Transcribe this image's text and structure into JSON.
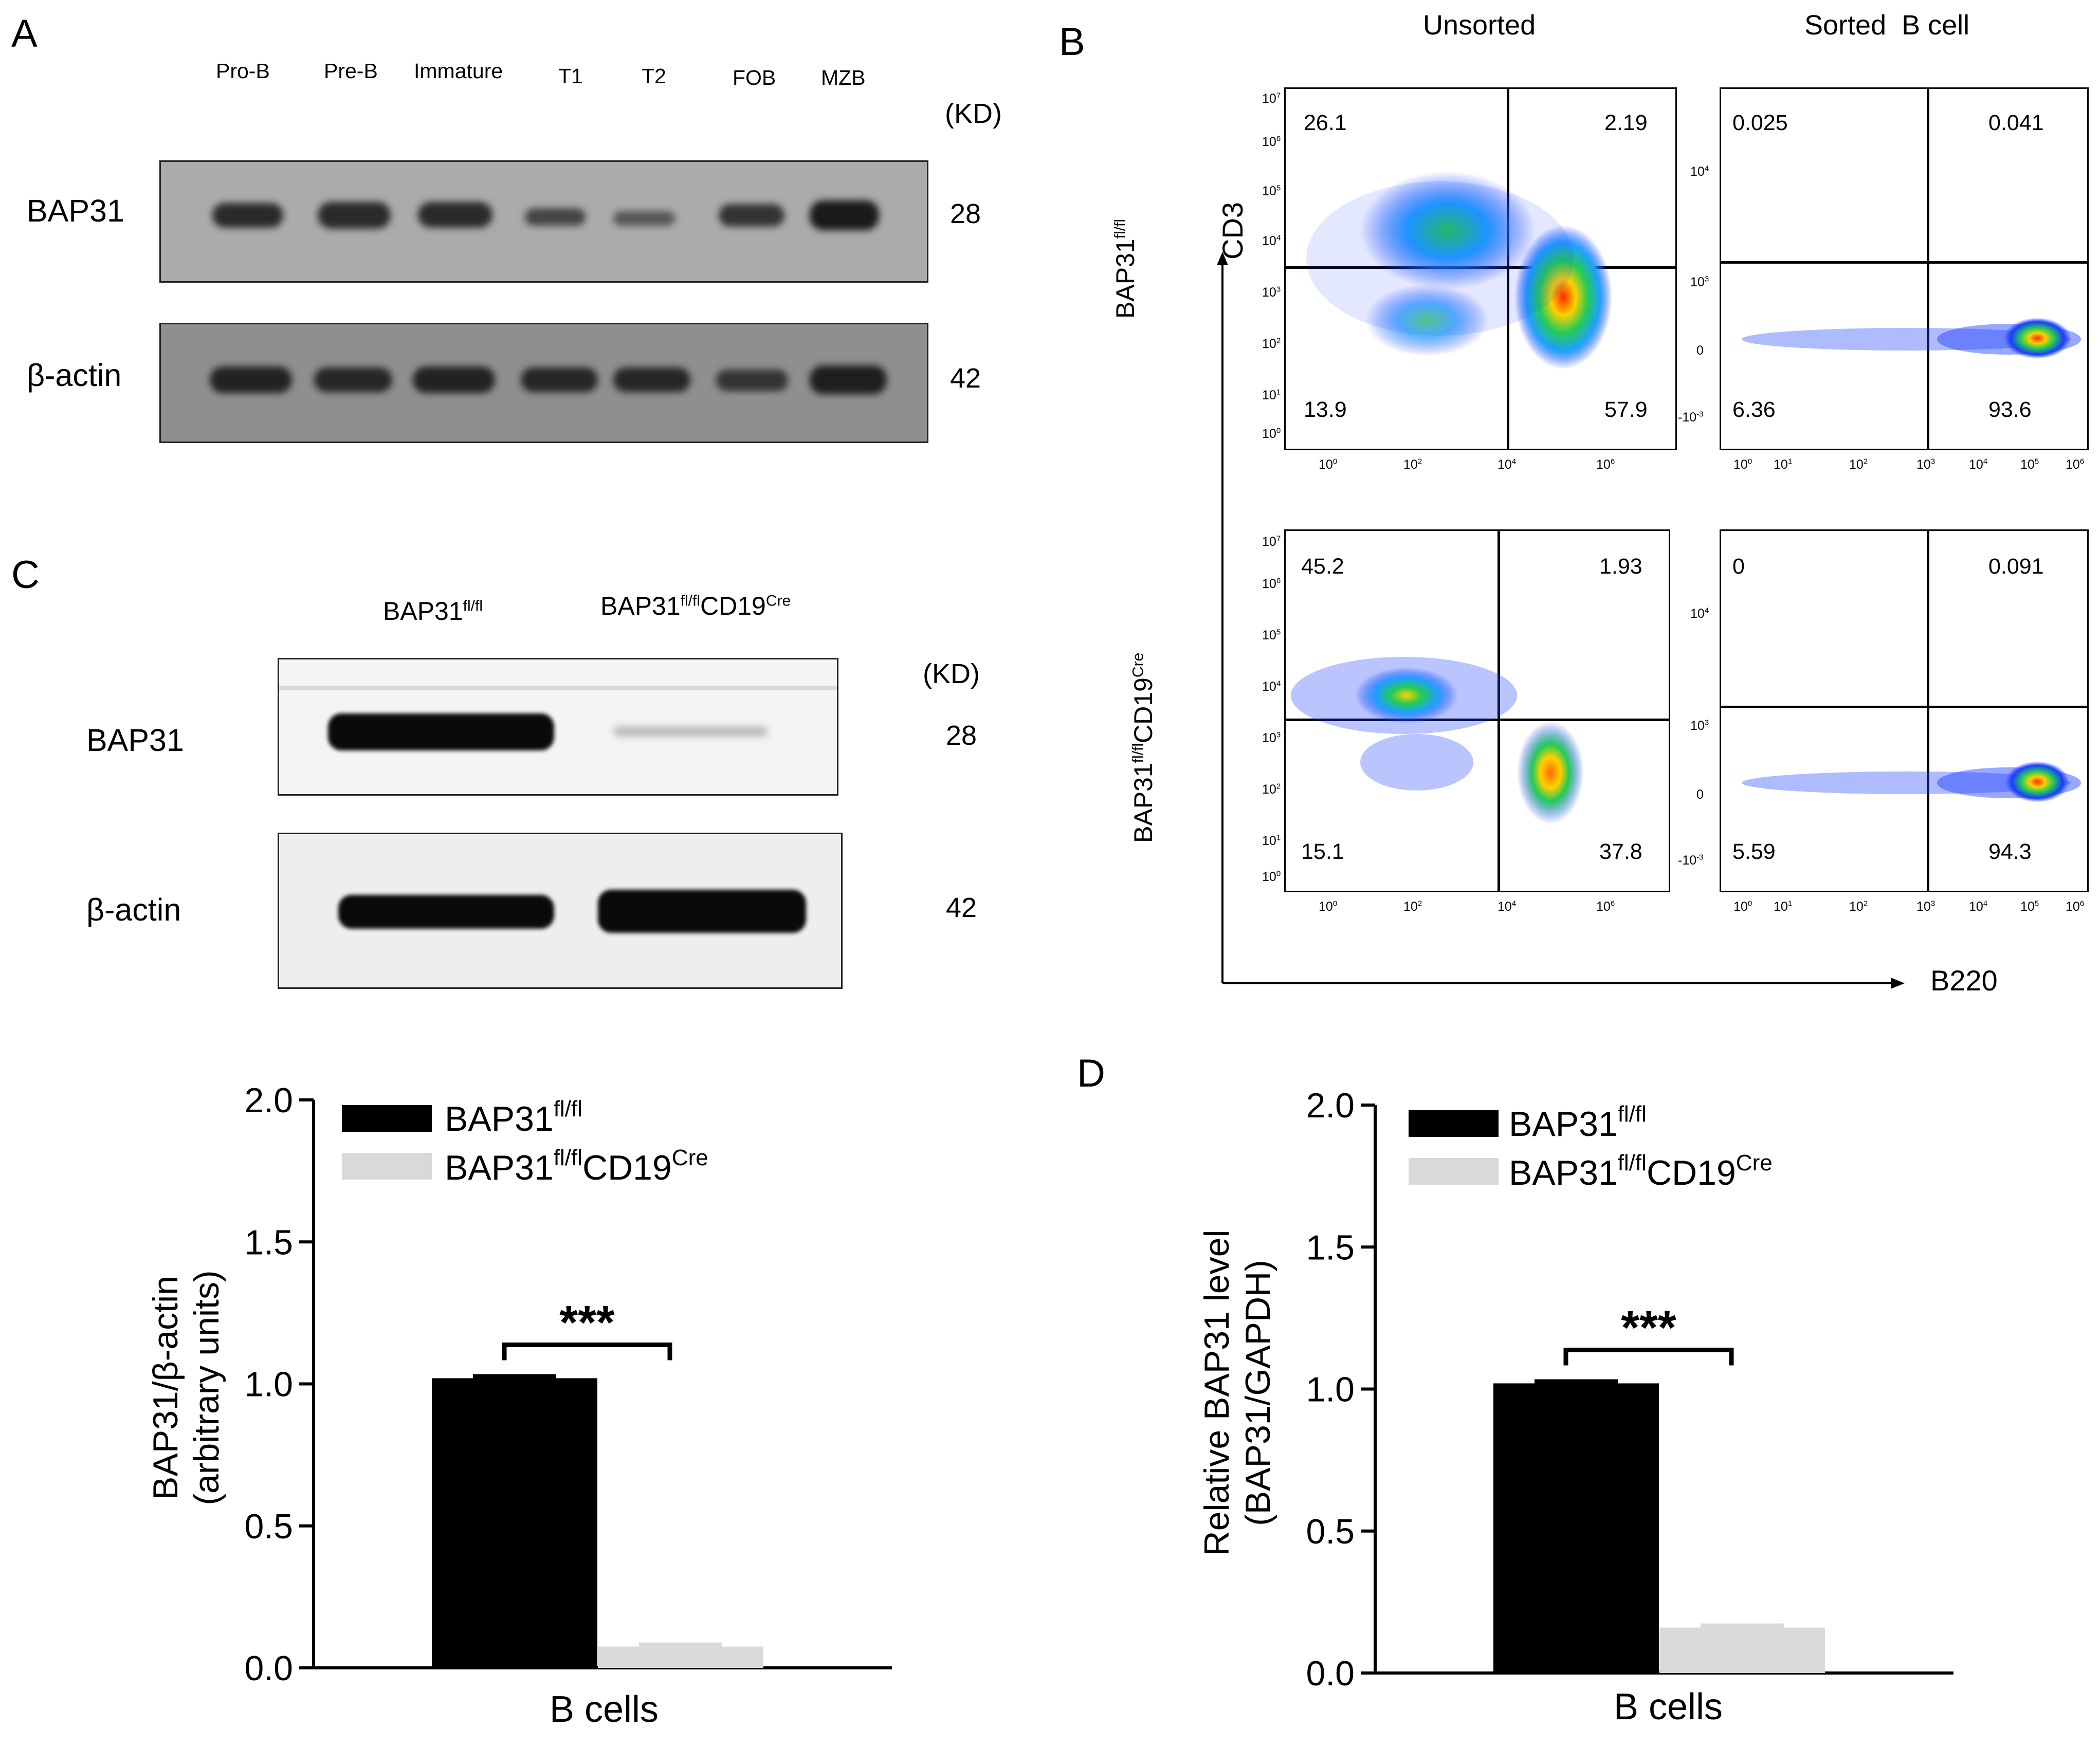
{
  "panels": {
    "a": "A",
    "b": "B",
    "c": "C",
    "d": "D"
  },
  "panel_a": {
    "lanes": [
      "Pro-B",
      "Pre-B",
      "Immature",
      "T1",
      "T2",
      "FOB",
      "MZB"
    ],
    "kd_unit": "(KD)",
    "rows": [
      {
        "label": "BAP31",
        "kd": "28"
      },
      {
        "label": "β-actin",
        "kd": "42"
      }
    ]
  },
  "panel_b": {
    "col_unsorted": "Unsorted",
    "col_sorted": "Sorted  B cell",
    "row1_label": "BAP31",
    "row1_sup": "fl/fl",
    "row2_label_a": "BAP31",
    "row2_sup_a": "fl/fl",
    "row2_label_b": "CD19",
    "row2_sup_b": "Cre",
    "y_axis": "CD3",
    "x_axis": "B220",
    "quadrants": {
      "r1_unsorted": [
        "26.1",
        "2.19",
        "13.9",
        "57.9"
      ],
      "r1_sorted": [
        "0.025",
        "0.041",
        "6.36",
        "93.6"
      ],
      "r2_unsorted": [
        "45.2",
        "1.93",
        "15.1",
        "37.8"
      ],
      "r2_sorted": [
        "0",
        "0.091",
        "5.59",
        "94.3"
      ]
    },
    "tick_base": "10",
    "unsorted_y_exps": [
      "7",
      "6",
      "5",
      "4",
      "3",
      "2",
      "1",
      "0"
    ],
    "unsorted_x_exps": [
      "0",
      "2",
      "4",
      "6"
    ],
    "sorted_y_labels": {
      "e4": "4",
      "e3": "3",
      "zero": "0",
      "ne3": "-3"
    },
    "sorted_x_exps": [
      "0",
      "1",
      "2",
      "3",
      "4",
      "5",
      "6"
    ]
  },
  "panel_c": {
    "col1": "BAP31",
    "col1_sup": "fl/fl",
    "col2": "BAP31",
    "col2_sup": "fl/fl",
    "col2_b": "CD19",
    "col2_sup_b": "Cre",
    "kd_unit": "(KD)",
    "rows": [
      {
        "label": "BAP31",
        "kd": "28"
      },
      {
        "label": "β-actin",
        "kd": "42"
      }
    ]
  },
  "chart_data": [
    {
      "type": "bar",
      "panel": "C",
      "categories": [
        "B cells"
      ],
      "series": [
        {
          "name": "BAP31fl/fl",
          "values": [
            1.02
          ],
          "color": "#000000"
        },
        {
          "name": "BAP31fl/flCD19Cre",
          "values": [
            0.075
          ],
          "color": "#d9d9d9"
        }
      ],
      "legend_base": "BAP31",
      "legend_sup1": "fl/fl",
      "legend_sup2": "fl/fl",
      "legend_mid": "CD19",
      "legend_sup3": "Cre",
      "xlabel": "B cells",
      "ylabel_line1": "BAP31/β-actin",
      "ylabel_line2": "(arbitrary units)",
      "ylim": [
        0,
        2.0
      ],
      "yticks": [
        "0.0",
        "0.5",
        "1.0",
        "1.5",
        "2.0"
      ],
      "significance": "***"
    },
    {
      "type": "bar",
      "panel": "D",
      "categories": [
        "B cells"
      ],
      "series": [
        {
          "name": "BAP31fl/fl",
          "values": [
            1.02
          ],
          "color": "#000000"
        },
        {
          "name": "BAP31fl/flCD19Cre",
          "values": [
            0.16
          ],
          "color": "#d9d9d9"
        }
      ],
      "legend_base": "BAP31",
      "legend_sup1": "fl/fl",
      "legend_sup2": "fl/fl",
      "legend_mid": "CD19",
      "legend_sup3": "Cre",
      "xlabel": "B cells",
      "ylabel_line1": "Relative BAP31 level",
      "ylabel_line2": "(BAP31/GAPDH)",
      "ylim": [
        0,
        2.0
      ],
      "yticks": [
        "0.0",
        "0.5",
        "1.0",
        "1.5",
        "2.0"
      ],
      "significance": "***"
    }
  ]
}
